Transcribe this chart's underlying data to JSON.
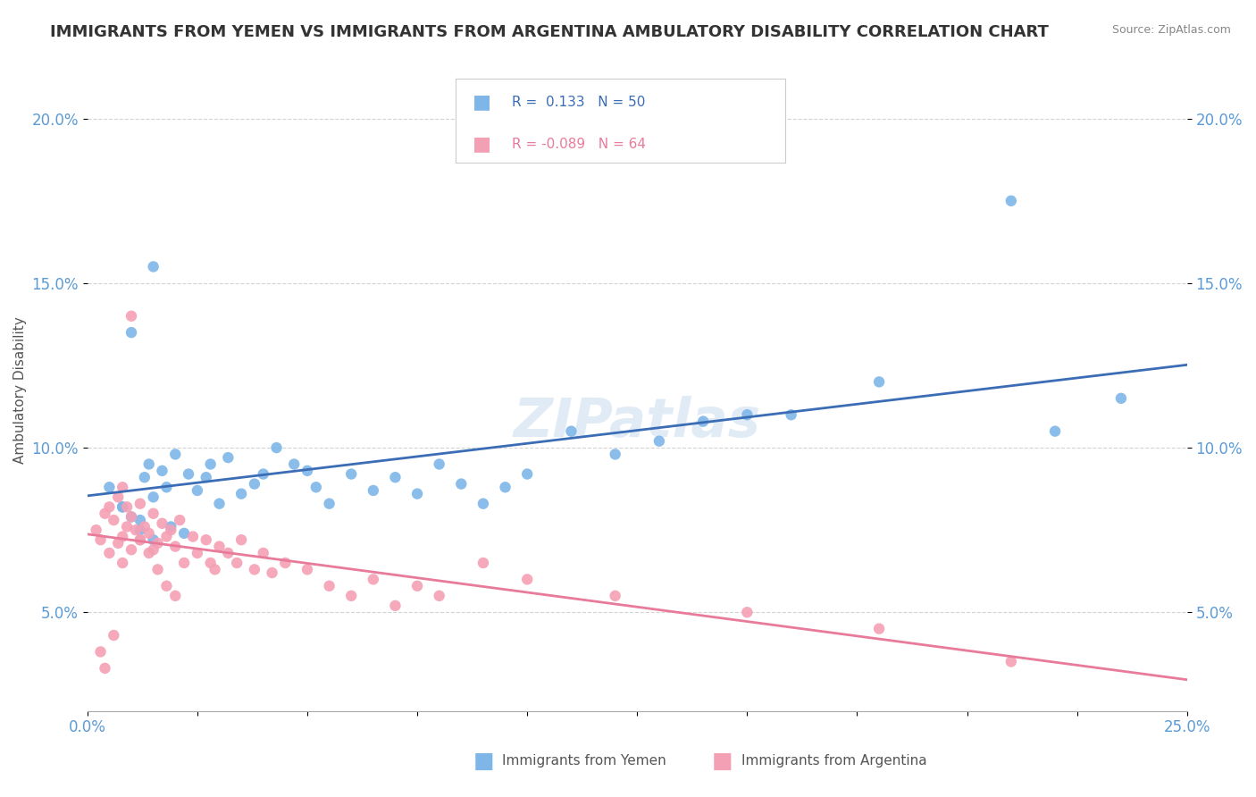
{
  "title": "IMMIGRANTS FROM YEMEN VS IMMIGRANTS FROM ARGENTINA AMBULATORY DISABILITY CORRELATION CHART",
  "source": "Source: ZipAtlas.com",
  "ylabel": "Ambulatory Disability",
  "xlabel": "",
  "xlim": [
    0.0,
    0.25
  ],
  "ylim": [
    0.02,
    0.215
  ],
  "xtick_positions": [
    0.0,
    0.025,
    0.05,
    0.075,
    0.1,
    0.125,
    0.15,
    0.175,
    0.2,
    0.225,
    0.25
  ],
  "xtick_labels": [
    "0.0%",
    "",
    "",
    "",
    "",
    "",
    "",
    "",
    "",
    "",
    "25.0%"
  ],
  "ytick_positions": [
    0.05,
    0.1,
    0.15,
    0.2
  ],
  "ytick_labels": [
    "5.0%",
    "10.0%",
    "15.0%",
    "20.0%"
  ],
  "legend_r1_text": "R =  0.133   N = 50",
  "legend_r2_text": "R = -0.089   N = 64",
  "yemen_color": "#7EB6E8",
  "argentina_color": "#F4A0B4",
  "yemen_line_color": "#3A6DB5",
  "argentina_line_color": "#E87A9A",
  "legend_r1_color": "#3A6DB5",
  "legend_r2_color": "#E87A9A",
  "watermark": "ZIPatlas",
  "background_color": "#FFFFFF",
  "tick_color": "#5B9BD5",
  "ylabel_color": "#555555",
  "title_color": "#333333",
  "source_color": "#888888",
  "legend_label1": "Immigrants from Yemen",
  "legend_label2": "Immigrants from Argentina",
  "yemen_x": [
    0.005,
    0.008,
    0.01,
    0.012,
    0.013,
    0.014,
    0.015,
    0.015,
    0.017,
    0.018,
    0.019,
    0.02,
    0.022,
    0.023,
    0.025,
    0.027,
    0.028,
    0.03,
    0.032,
    0.035,
    0.038,
    0.04,
    0.043,
    0.047,
    0.05,
    0.052,
    0.055,
    0.06,
    0.065,
    0.07,
    0.075,
    0.08,
    0.085,
    0.09,
    0.095,
    0.1,
    0.11,
    0.12,
    0.13,
    0.14,
    0.15,
    0.16,
    0.18,
    0.21,
    0.22,
    0.235,
    0.01,
    0.015,
    0.008,
    0.012
  ],
  "yemen_y": [
    0.088,
    0.082,
    0.079,
    0.075,
    0.091,
    0.095,
    0.072,
    0.085,
    0.093,
    0.088,
    0.076,
    0.098,
    0.074,
    0.092,
    0.087,
    0.091,
    0.095,
    0.083,
    0.097,
    0.086,
    0.089,
    0.092,
    0.1,
    0.095,
    0.093,
    0.088,
    0.083,
    0.092,
    0.087,
    0.091,
    0.086,
    0.095,
    0.089,
    0.083,
    0.088,
    0.092,
    0.105,
    0.098,
    0.102,
    0.108,
    0.11,
    0.11,
    0.12,
    0.175,
    0.105,
    0.115,
    0.135,
    0.155,
    0.082,
    0.078
  ],
  "argentina_x": [
    0.002,
    0.003,
    0.004,
    0.005,
    0.005,
    0.006,
    0.007,
    0.007,
    0.008,
    0.008,
    0.009,
    0.009,
    0.01,
    0.01,
    0.011,
    0.012,
    0.012,
    0.013,
    0.014,
    0.015,
    0.015,
    0.016,
    0.017,
    0.018,
    0.019,
    0.02,
    0.021,
    0.022,
    0.024,
    0.025,
    0.027,
    0.028,
    0.029,
    0.03,
    0.032,
    0.034,
    0.035,
    0.038,
    0.04,
    0.042,
    0.045,
    0.05,
    0.055,
    0.06,
    0.065,
    0.07,
    0.075,
    0.08,
    0.09,
    0.1,
    0.12,
    0.15,
    0.18,
    0.21,
    0.003,
    0.004,
    0.006,
    0.008,
    0.01,
    0.012,
    0.014,
    0.016,
    0.018,
    0.02
  ],
  "argentina_y": [
    0.075,
    0.072,
    0.08,
    0.068,
    0.082,
    0.078,
    0.071,
    0.085,
    0.073,
    0.088,
    0.076,
    0.082,
    0.069,
    0.079,
    0.075,
    0.072,
    0.083,
    0.076,
    0.074,
    0.069,
    0.08,
    0.071,
    0.077,
    0.073,
    0.075,
    0.07,
    0.078,
    0.065,
    0.073,
    0.068,
    0.072,
    0.065,
    0.063,
    0.07,
    0.068,
    0.065,
    0.072,
    0.063,
    0.068,
    0.062,
    0.065,
    0.063,
    0.058,
    0.055,
    0.06,
    0.052,
    0.058,
    0.055,
    0.065,
    0.06,
    0.055,
    0.05,
    0.045,
    0.035,
    0.038,
    0.033,
    0.043,
    0.065,
    0.14,
    0.072,
    0.068,
    0.063,
    0.058,
    0.055
  ]
}
